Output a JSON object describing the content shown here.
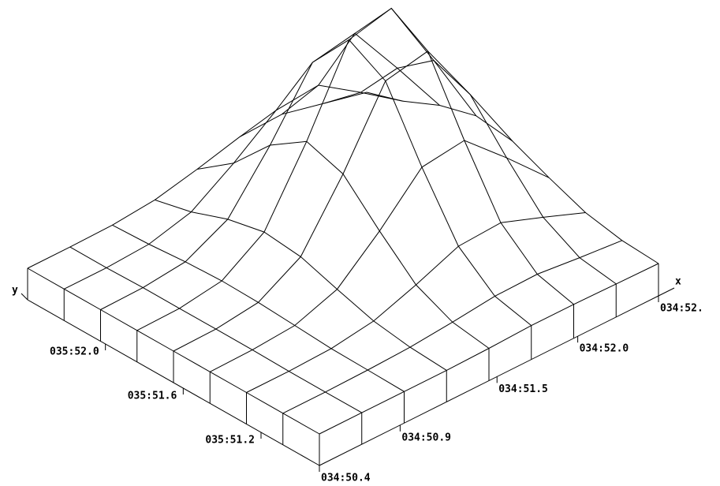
{
  "chart_data": {
    "type": "surface",
    "x_label": "x",
    "y_label": "y",
    "xlim": [
      50.4,
      52.5
    ],
    "ylim": [
      50.9,
      52.4
    ],
    "xticks": [
      {
        "value": 50.4,
        "label": "034:50.4"
      },
      {
        "value": 50.9,
        "label": "034:50.9"
      },
      {
        "value": 51.5,
        "label": "034:51.5"
      },
      {
        "value": 52.0,
        "label": "034:52.0"
      },
      {
        "value": 52.5,
        "label": "034:52."
      }
    ],
    "yticks": [
      {
        "value": 51.2,
        "label": "035:51.2"
      },
      {
        "value": 51.6,
        "label": "035:51.6"
      },
      {
        "value": 52.0,
        "label": "035:52.0"
      }
    ],
    "z": [
      [
        40,
        40,
        40,
        40,
        41,
        43,
        43,
        42,
        41
      ],
      [
        40,
        40,
        41,
        43,
        48,
        54,
        55,
        49,
        44
      ],
      [
        40,
        40,
        42,
        50,
        69,
        91,
        94,
        74,
        53
      ],
      [
        40,
        41,
        45,
        64,
        111,
        165,
        172,
        123,
        71
      ],
      [
        40,
        41,
        48,
        79,
        157,
        248,
        259,
        177,
        91
      ],
      [
        40,
        41,
        49,
        84,
        172,
        274,
        287,
        194,
        97
      ],
      [
        40,
        41,
        47,
        74,
        141,
        219,
        229,
        158,
        84
      ],
      [
        40,
        40,
        43,
        57,
        92,
        132,
        137,
        101,
        63
      ],
      [
        40,
        40,
        41,
        46,
        58,
        72,
        74,
        61,
        48
      ]
    ]
  }
}
